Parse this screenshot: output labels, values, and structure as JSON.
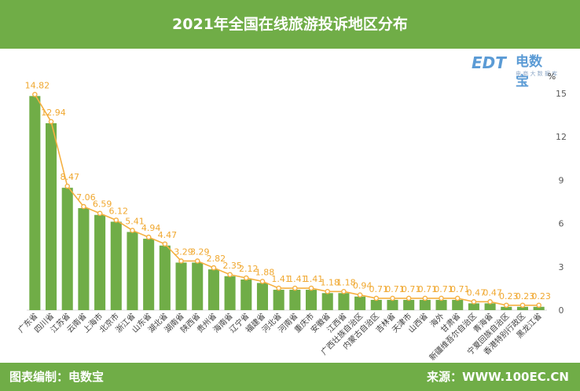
{
  "header": {
    "title": "2021年全国在线旅游投诉地区分布"
  },
  "footer": {
    "left": "图表编制：电数宝",
    "right": "来源：WWW.100EC.CN"
  },
  "logo": {
    "brand": "电数宝",
    "mark": "EDT",
    "sub": "电 商 大 数 据 库"
  },
  "colors": {
    "bar": "#70ad47",
    "line": "#f5b041",
    "header": "#70ad47"
  },
  "chart_data": {
    "type": "bar",
    "unit_label": "%",
    "ylim": [
      0,
      15
    ],
    "yticks": [
      0,
      3,
      6,
      9,
      12,
      15
    ],
    "categories": [
      "广东省",
      "四川省",
      "江苏省",
      "云南省",
      "上海市",
      "北京市",
      "浙江省",
      "山东省",
      "湖北省",
      "湖南省",
      "陕西省",
      "贵州省",
      "海南省",
      "辽宁省",
      "福建省",
      "河北省",
      "河南省",
      "重庆市",
      "安徽省",
      "江西省",
      "广西壮族自治区",
      "内蒙古自治区",
      "吉林省",
      "天津市",
      "山西省",
      "海外",
      "甘肃省",
      "新疆维吾尔自治区",
      "青海省",
      "宁夏回族自治区",
      "香港特别行政区",
      "黑龙江省"
    ],
    "values": [
      14.82,
      12.94,
      8.47,
      7.06,
      6.59,
      6.12,
      5.41,
      4.94,
      4.47,
      3.29,
      3.29,
      2.82,
      2.35,
      2.12,
      1.88,
      1.41,
      1.41,
      1.41,
      1.18,
      1.18,
      0.94,
      0.71,
      0.71,
      0.71,
      0.71,
      0.71,
      0.71,
      0.47,
      0.47,
      0.23,
      0.23,
      0.23
    ],
    "data_labels": [
      "14.82",
      "12.94",
      "8.47",
      "7.06",
      "6.59",
      "6.12",
      "5.41",
      "4.94",
      "4.47",
      "3.29",
      "3.29",
      "2.82",
      "2.35",
      "2.12",
      "1.88",
      "1.41",
      "1.41",
      "1.41",
      "1.18",
      "1.18",
      "0.94",
      "0.71",
      "0.71",
      "0.71",
      "0.71",
      "0.71",
      "0.71",
      "0.47",
      "0.47",
      "0.23",
      "0.23",
      "0.23"
    ],
    "grid": false,
    "legend": "none"
  }
}
